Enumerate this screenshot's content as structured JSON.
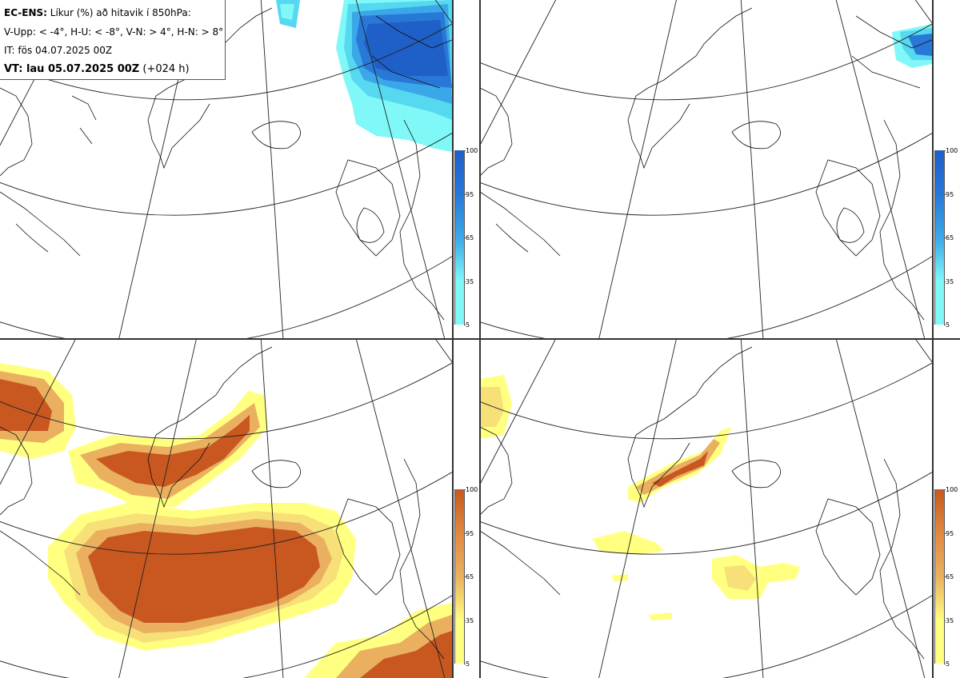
{
  "header": {
    "title_bold": "EC-ENS:",
    "title_rest": " Líkur (%) að hitavik í 850hPa:",
    "thresholds": "V-Upp: < -4°, H-U: < -8°, V-N: > 4°, H-N: > 8°",
    "init_time": "IT: fös 04.07.2025 00Z",
    "valid_bold": "VT: lau 05.07.2025 00Z",
    "valid_rest": " (+024 h)"
  },
  "colors": {
    "cold": [
      "#80f8f8",
      "#55d8f0",
      "#3aa8e8",
      "#2878d8",
      "#1f5fc8"
    ],
    "warm": [
      "#ffff80",
      "#f8e078",
      "#eab060",
      "#e08a40",
      "#c85820"
    ]
  },
  "colorbar_ticks": [
    "100",
    "95",
    "65",
    "35",
    "5"
  ],
  "panels": [
    {
      "id": "cold-moderate",
      "palette": "cold"
    },
    {
      "id": "cold-strong",
      "palette": "cold"
    },
    {
      "id": "warm-moderate",
      "palette": "warm"
    },
    {
      "id": "warm-strong",
      "palette": "warm"
    }
  ]
}
